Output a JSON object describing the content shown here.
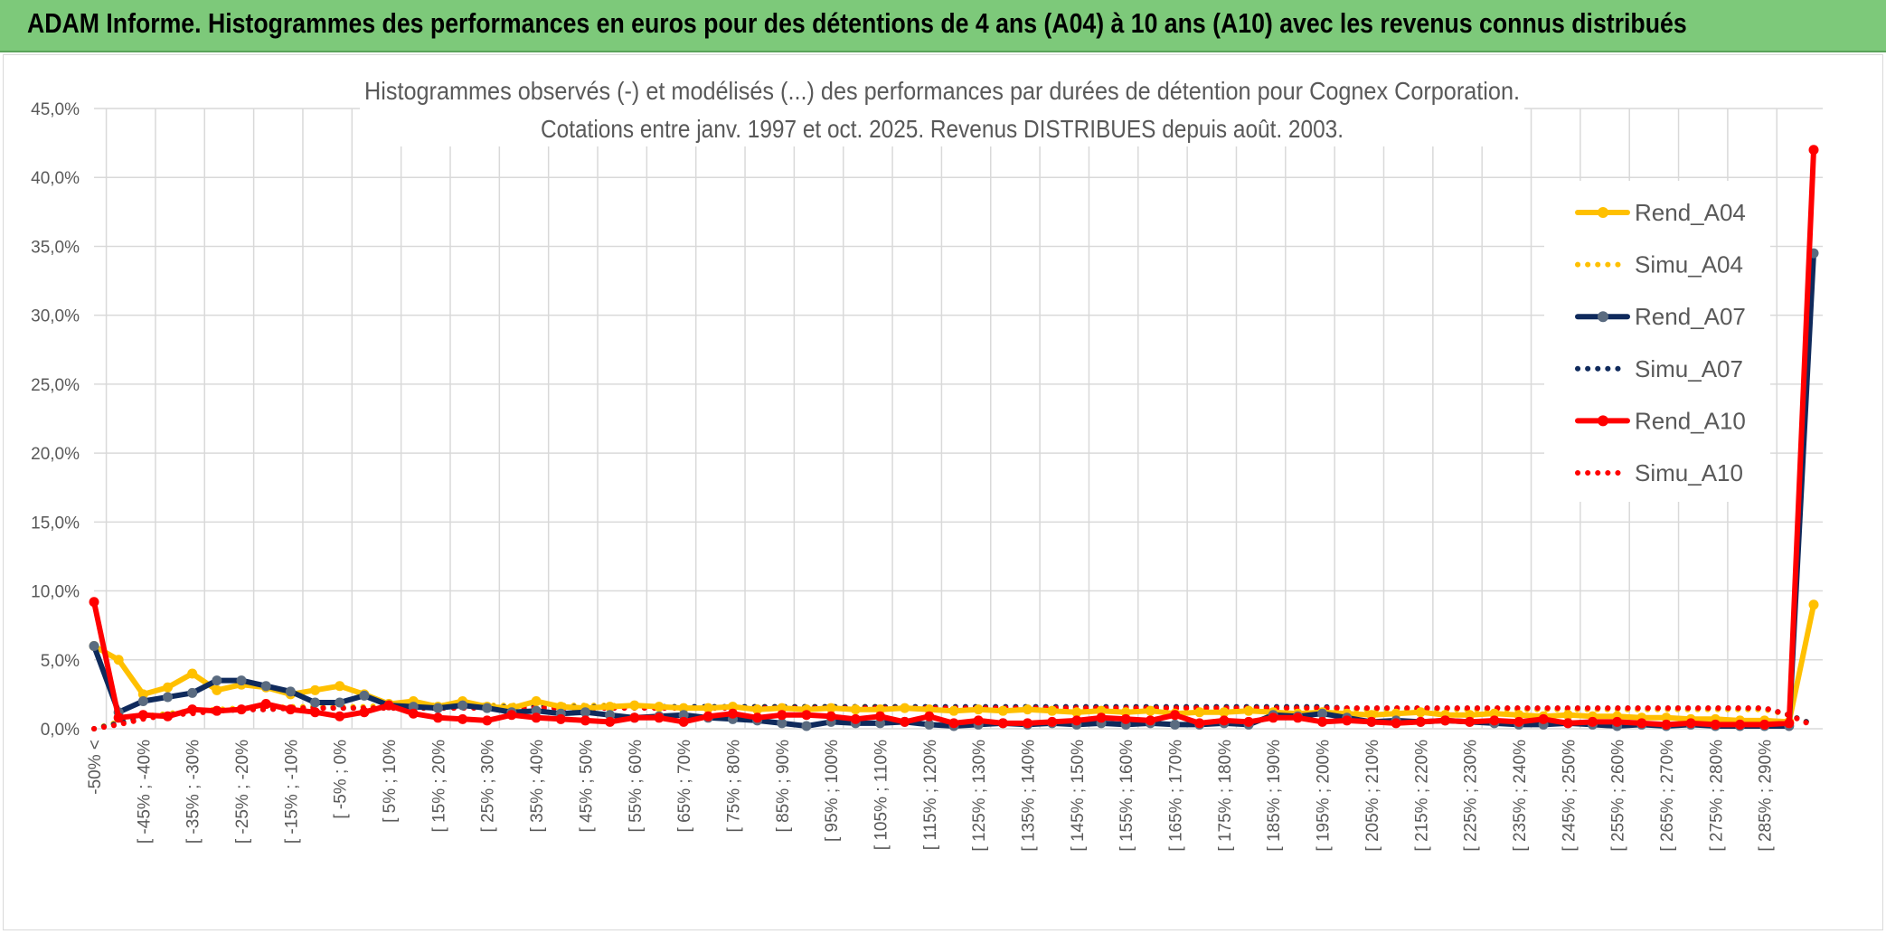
{
  "header": {
    "title": "ADAM Informe. Histogrammes des performances en euros pour des détentions de 4 ans (A04) à 10 ans (A10) avec les revenus connus distribués"
  },
  "chart_data": {
    "type": "line",
    "title_line1": "Histogrammes observés (-) et modélisés (...) des performances par durées de détention pour Cognex Corporation.",
    "title_line2": "Cotations entre janv. 1997 et oct. 2025. Revenus DISTRIBUES depuis août. 2003.",
    "y_ticks": [
      "0,0%",
      "5,0%",
      "10,0%",
      "15,0%",
      "20,0%",
      "25,0%",
      "30,0%",
      "35,0%",
      "40,0%",
      "45,0%"
    ],
    "ylim": [
      0,
      45
    ],
    "x_labels": [
      "-50% <",
      "[ -45% ; -40%",
      "[ -35% ; -30%",
      "[ -25% ; -20%",
      "[ -15% ; -10%",
      "[ -5% ; 0%",
      "[ 5% ; 10%",
      "[ 15% ; 20%",
      "[ 25% ; 30%",
      "[ 35% ; 40%",
      "[ 45% ; 50%",
      "[ 55% ; 60%",
      "[ 65% ; 70%",
      "[ 75% ; 80%",
      "[ 85% ; 90%",
      "[ 95% ; 100%",
      "[ 105% ; 110%",
      "[ 115% ; 120%",
      "[ 125% ; 130%",
      "[ 135% ; 140%",
      "[ 145% ; 150%",
      "[ 155% ; 160%",
      "[ 165% ; 170%",
      "[ 175% ; 180%",
      "[ 185% ; 190%",
      "[ 195% ; 200%",
      "[ 205% ; 210%",
      "[ 215% ; 220%",
      "[ 225% ; 230%",
      "[ 235% ; 240%",
      "[ 245% ; 250%",
      "[ 255% ; 260%",
      "[ 265% ; 270%",
      "[ 275% ; 280%",
      "[ 285% ; 290%"
    ],
    "n_points": 71,
    "series": [
      {
        "name": "Rend_A04",
        "color": "#ffc000",
        "style": "solid",
        "values": [
          6.0,
          5.0,
          2.5,
          3.0,
          4.0,
          2.8,
          3.2,
          3.0,
          2.5,
          2.8,
          3.1,
          2.5,
          1.8,
          2.0,
          1.6,
          2.0,
          1.6,
          1.5,
          2.0,
          1.6,
          1.5,
          1.6,
          1.7,
          1.6,
          1.5,
          1.5,
          1.6,
          1.4,
          1.5,
          1.4,
          1.5,
          1.4,
          1.4,
          1.5,
          1.4,
          1.3,
          1.4,
          1.3,
          1.4,
          1.3,
          1.2,
          1.3,
          1.2,
          1.3,
          1.1,
          1.2,
          1.2,
          1.3,
          1.2,
          1.1,
          1.2,
          1.1,
          1.0,
          1.1,
          1.2,
          1.0,
          1.0,
          1.1,
          1.0,
          0.9,
          1.0,
          0.9,
          0.9,
          0.8,
          0.8,
          0.7,
          0.7,
          0.6,
          0.6,
          0.5,
          9.0
        ]
      },
      {
        "name": "Simu_A04",
        "color": "#ffc000",
        "style": "dotted",
        "values": [
          0.0,
          0.5,
          0.9,
          1.1,
          1.3,
          1.4,
          1.5,
          1.5,
          1.6,
          1.6,
          1.6,
          1.6,
          1.7,
          1.7,
          1.7,
          1.7,
          1.7,
          1.7,
          1.7,
          1.7,
          1.7,
          1.7,
          1.6,
          1.6,
          1.6,
          1.6,
          1.6,
          1.6,
          1.6,
          1.6,
          1.6,
          1.6,
          1.6,
          1.6,
          1.5,
          1.5,
          1.5,
          1.5,
          1.5,
          1.5,
          1.5,
          1.5,
          1.5,
          1.5,
          1.5,
          1.5,
          1.5,
          1.5,
          1.5,
          1.5,
          1.5,
          1.4,
          1.4,
          1.4,
          1.4,
          1.4,
          1.4,
          1.4,
          1.4,
          1.4,
          1.4,
          1.4,
          1.4,
          1.4,
          1.4,
          1.4,
          1.4,
          1.4,
          1.4,
          1.0,
          0.3
        ]
      },
      {
        "name": "Rend_A07",
        "color": "#0f2a5c",
        "style": "solid",
        "values": [
          6.0,
          1.2,
          2.0,
          2.3,
          2.6,
          3.5,
          3.5,
          3.1,
          2.7,
          1.9,
          1.9,
          2.4,
          1.7,
          1.6,
          1.5,
          1.7,
          1.5,
          1.2,
          1.3,
          1.1,
          1.2,
          1.0,
          0.8,
          0.9,
          1.0,
          0.8,
          0.7,
          0.6,
          0.4,
          0.2,
          0.5,
          0.4,
          0.4,
          0.5,
          0.3,
          0.2,
          0.3,
          0.4,
          0.3,
          0.4,
          0.3,
          0.4,
          0.3,
          0.4,
          0.3,
          0.3,
          0.4,
          0.3,
          1.0,
          0.9,
          1.1,
          0.8,
          0.5,
          0.6,
          0.5,
          0.6,
          0.5,
          0.4,
          0.3,
          0.3,
          0.4,
          0.3,
          0.2,
          0.3,
          0.2,
          0.3,
          0.2,
          0.2,
          0.2,
          0.2,
          34.5
        ]
      },
      {
        "name": "Simu_A07",
        "color": "#0f2a5c",
        "style": "dotted",
        "values": [
          0.0,
          0.4,
          0.8,
          1.0,
          1.2,
          1.3,
          1.4,
          1.4,
          1.5,
          1.5,
          1.5,
          1.5,
          1.5,
          1.5,
          1.5,
          1.5,
          1.6,
          1.6,
          1.6,
          1.6,
          1.6,
          1.6,
          1.6,
          1.6,
          1.6,
          1.6,
          1.6,
          1.6,
          1.6,
          1.6,
          1.6,
          1.6,
          1.6,
          1.6,
          1.6,
          1.6,
          1.6,
          1.6,
          1.6,
          1.6,
          1.6,
          1.6,
          1.6,
          1.6,
          1.6,
          1.6,
          1.6,
          1.6,
          1.6,
          1.6,
          1.6,
          1.5,
          1.5,
          1.5,
          1.5,
          1.5,
          1.5,
          1.5,
          1.5,
          1.5,
          1.5,
          1.5,
          1.5,
          1.5,
          1.5,
          1.5,
          1.5,
          1.5,
          1.5,
          1.0,
          0.3
        ]
      },
      {
        "name": "Rend_A10",
        "color": "#ff0000",
        "style": "solid",
        "values": [
          9.2,
          0.8,
          1.0,
          0.9,
          1.4,
          1.3,
          1.4,
          1.8,
          1.4,
          1.2,
          0.9,
          1.2,
          1.7,
          1.1,
          0.8,
          0.7,
          0.6,
          1.0,
          0.8,
          0.7,
          0.6,
          0.5,
          0.8,
          0.8,
          0.5,
          0.9,
          1.1,
          0.8,
          1.0,
          1.0,
          0.9,
          0.7,
          0.9,
          0.5,
          0.9,
          0.4,
          0.6,
          0.4,
          0.4,
          0.5,
          0.6,
          0.8,
          0.7,
          0.6,
          1.0,
          0.4,
          0.6,
          0.5,
          0.8,
          0.8,
          0.5,
          0.6,
          0.5,
          0.4,
          0.5,
          0.6,
          0.5,
          0.6,
          0.5,
          0.7,
          0.4,
          0.5,
          0.5,
          0.4,
          0.3,
          0.4,
          0.3,
          0.3,
          0.3,
          0.4,
          42.0
        ]
      },
      {
        "name": "Simu_A10",
        "color": "#ff0000",
        "style": "dotted",
        "values": [
          0.0,
          0.3,
          0.7,
          1.0,
          1.1,
          1.3,
          1.4,
          1.4,
          1.5,
          1.5,
          1.5,
          1.5,
          1.5,
          1.5,
          1.5,
          1.5,
          1.5,
          1.5,
          1.5,
          1.5,
          1.5,
          1.5,
          1.5,
          1.5,
          1.5,
          1.5,
          1.5,
          1.5,
          1.5,
          1.5,
          1.5,
          1.5,
          1.5,
          1.5,
          1.5,
          1.5,
          1.5,
          1.5,
          1.5,
          1.5,
          1.5,
          1.5,
          1.5,
          1.5,
          1.5,
          1.5,
          1.5,
          1.5,
          1.5,
          1.5,
          1.5,
          1.5,
          1.5,
          1.5,
          1.5,
          1.5,
          1.5,
          1.5,
          1.5,
          1.5,
          1.5,
          1.5,
          1.5,
          1.5,
          1.5,
          1.5,
          1.5,
          1.5,
          1.5,
          1.0,
          0.2
        ]
      }
    ],
    "legend_position": "right"
  }
}
